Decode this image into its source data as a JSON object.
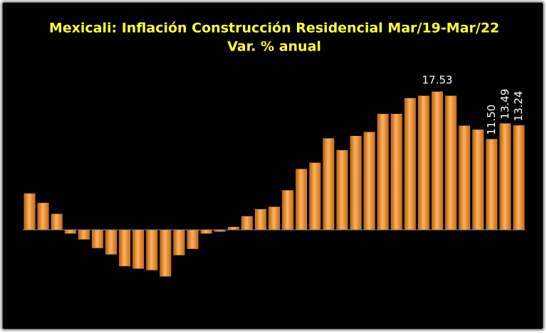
{
  "chart_data": {
    "type": "bar",
    "title": "Mexicali: Inflación Construcción Residencial Mar/19-Mar/22",
    "subtitle": "Var. % anual",
    "color": "#f59a3a",
    "values": [
      4.6,
      3.4,
      2.0,
      -0.45,
      -1.2,
      -2.3,
      -3.1,
      -4.6,
      -4.9,
      -5.1,
      -5.9,
      -3.2,
      -2.4,
      -0.45,
      -0.2,
      0.35,
      1.7,
      2.6,
      2.9,
      5.0,
      7.7,
      8.5,
      11.6,
      10.1,
      11.9,
      12.4,
      14.7,
      14.7,
      16.7,
      17.0,
      17.53,
      17.0,
      13.2,
      12.7,
      11.5,
      13.49,
      13.24
    ],
    "value_labels": [
      null,
      null,
      null,
      null,
      null,
      null,
      null,
      null,
      null,
      null,
      null,
      null,
      null,
      null,
      null,
      null,
      null,
      null,
      null,
      null,
      null,
      null,
      null,
      null,
      null,
      null,
      null,
      null,
      null,
      null,
      "17.53",
      null,
      null,
      null,
      "11.50",
      "13.49",
      "13.24"
    ]
  }
}
